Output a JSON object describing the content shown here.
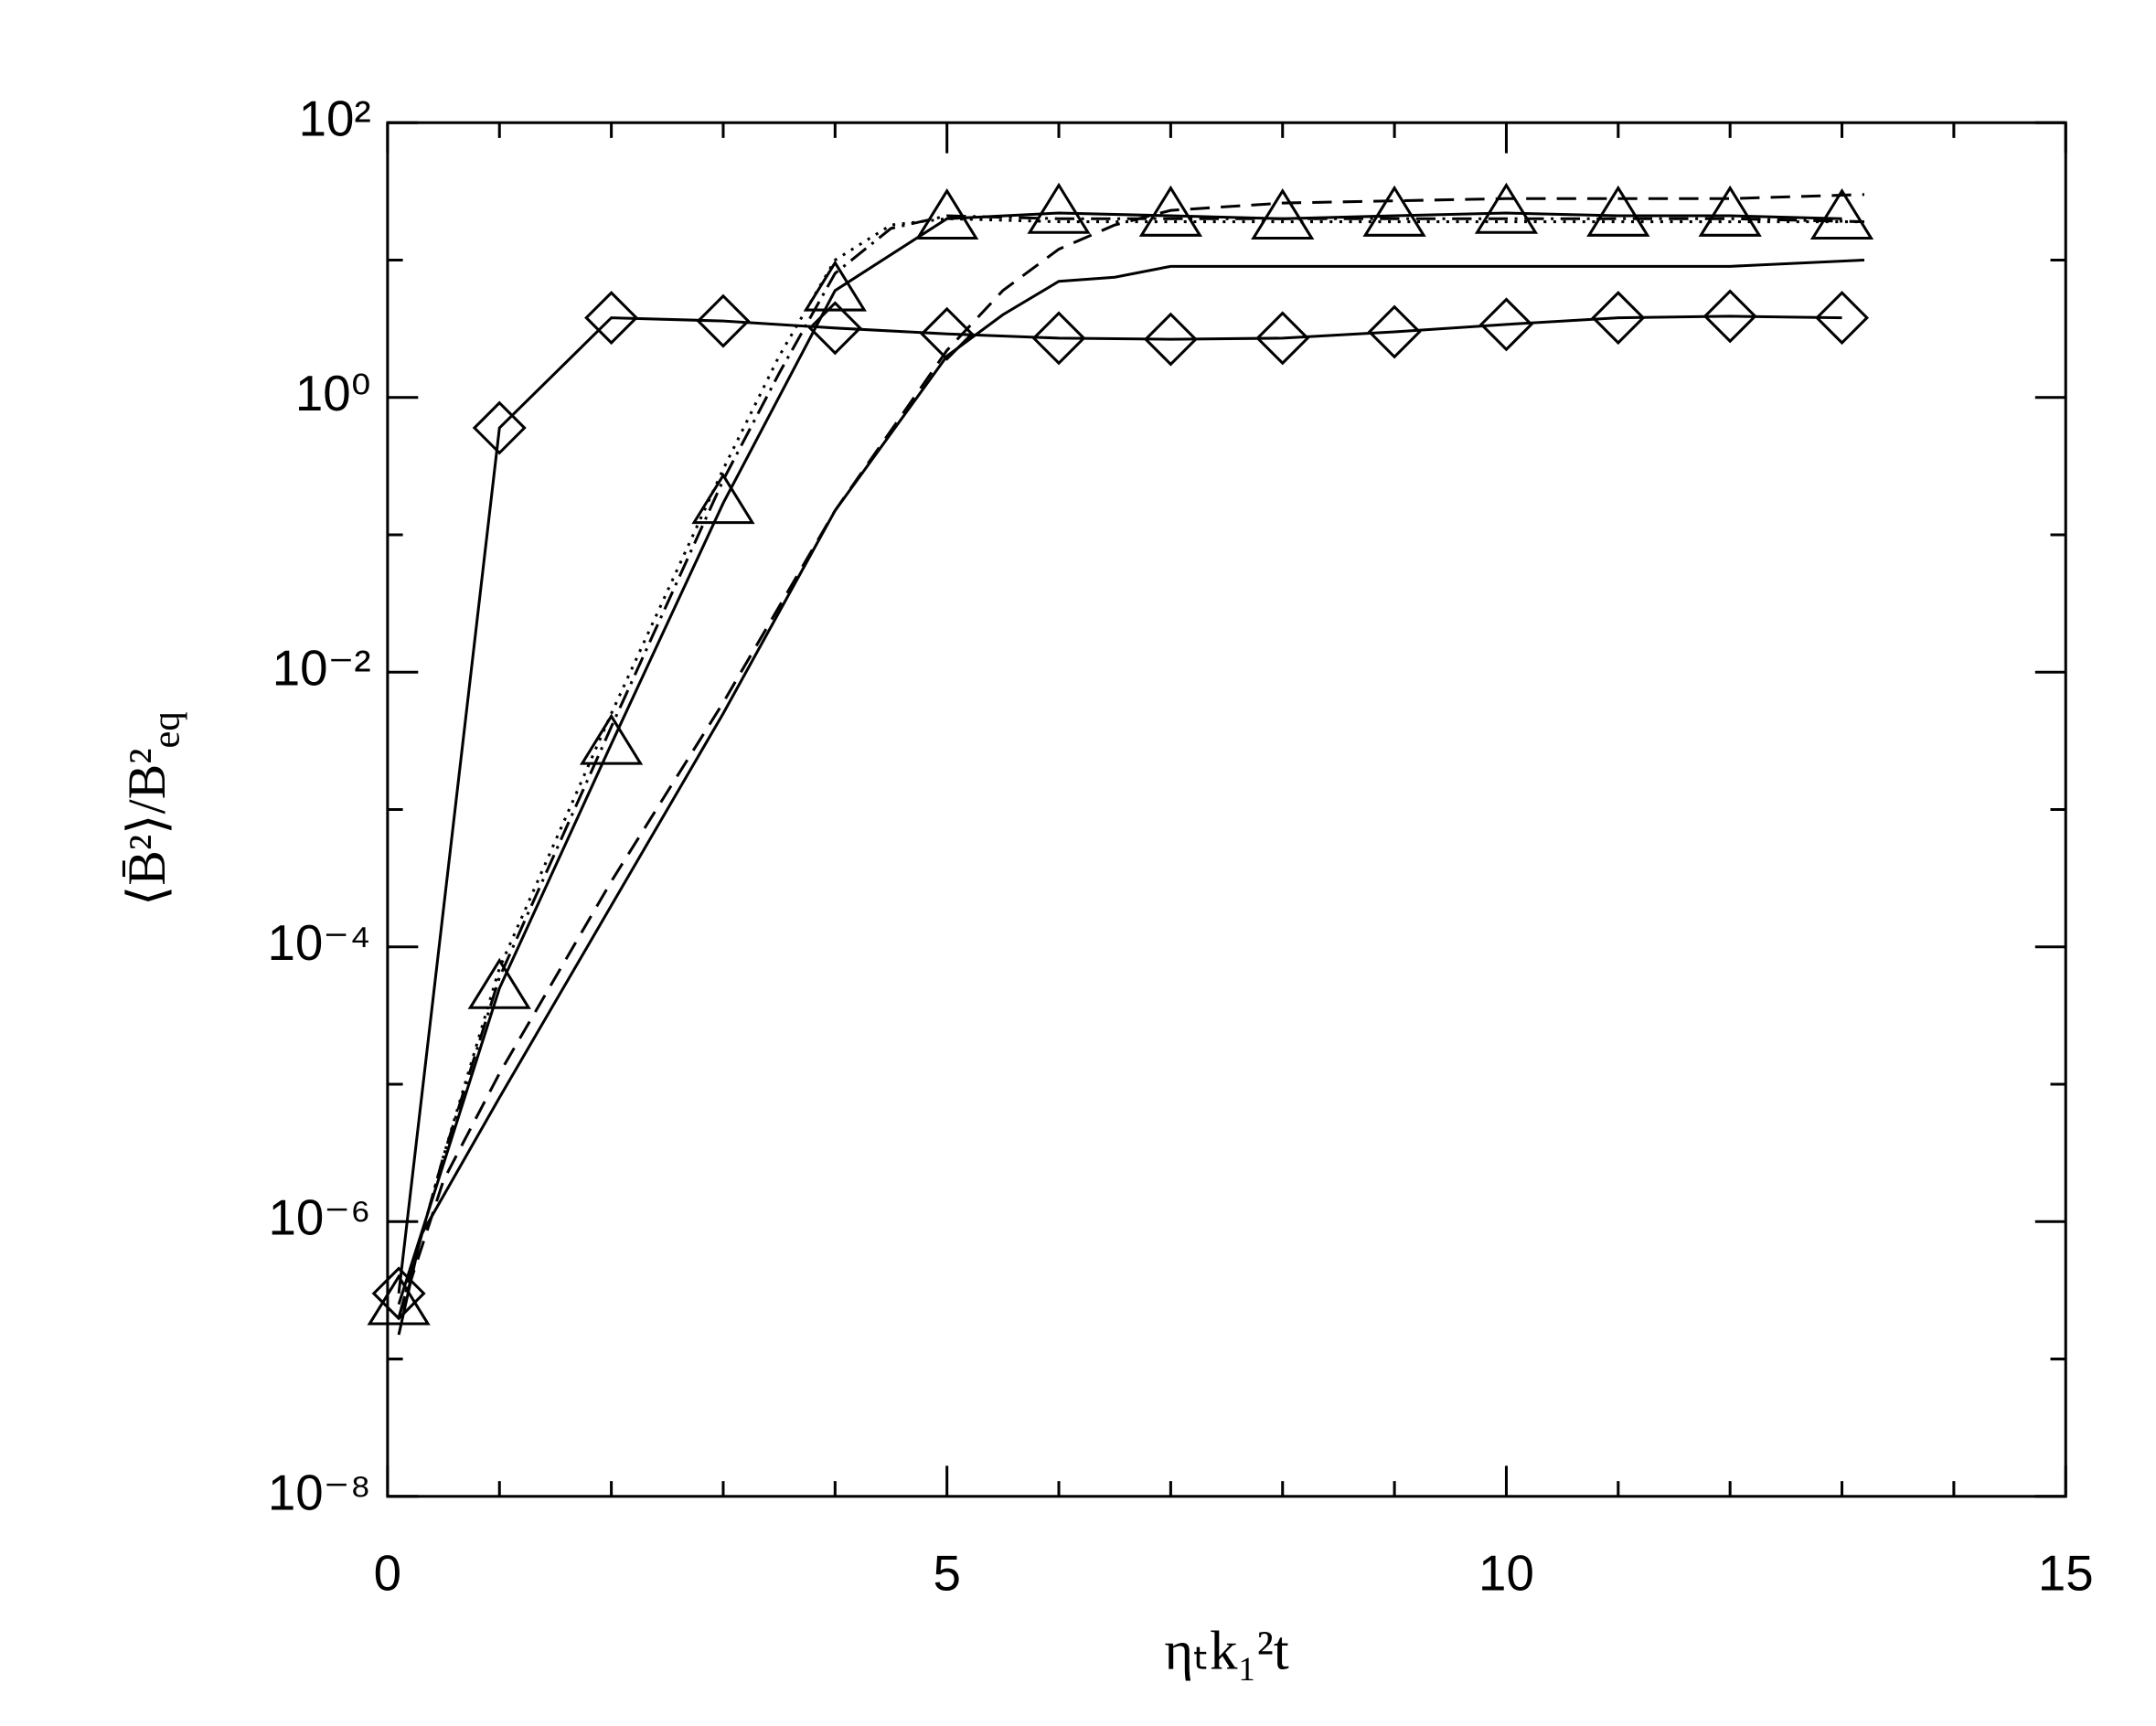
{
  "chart_data": {
    "type": "line",
    "xlabel": "ηₜk₁²t",
    "ylabel": {
      "main": "⟨B̄²⟩/B²",
      "sub": "eq"
    },
    "log_y": true,
    "xlim": [
      0,
      15
    ],
    "xticks": [
      0,
      5,
      10,
      15
    ],
    "x_minor_ticks": [
      1,
      2,
      3,
      4,
      6,
      7,
      8,
      9,
      11,
      12,
      13,
      14
    ],
    "ylim": [
      1e-08,
      100
    ],
    "yticks": [
      {
        "value": 1e-08,
        "label": "10⁻⁸"
      },
      {
        "value": 1e-06,
        "label": "10⁻⁶"
      },
      {
        "value": 0.0001,
        "label": "10⁻⁴"
      },
      {
        "value": 0.01,
        "label": "10⁻²"
      },
      {
        "value": 1,
        "label": "10⁰"
      },
      {
        "value": 100,
        "label": "10²"
      }
    ],
    "y_minor_ticks": [
      1e-07,
      1e-05,
      0.001,
      0.1,
      10
    ],
    "series": [
      {
        "color": "#000000",
        "marker": "diamond",
        "dash": "none",
        "x": [
          0.1,
          1,
          2,
          3,
          4,
          5,
          6,
          7,
          8,
          9,
          10,
          11,
          12,
          13
        ],
        "values": [
          3e-07,
          0.6,
          3.8,
          3.6,
          3.2,
          2.9,
          2.7,
          2.65,
          2.7,
          3.0,
          3.4,
          3.8,
          3.9,
          3.8
        ]
      },
      {
        "color": "#000000",
        "marker": "triangle",
        "dash": "none",
        "x": [
          0.1,
          1,
          2,
          3,
          4,
          5,
          6,
          7,
          8,
          9,
          10,
          11,
          12,
          13
        ],
        "values": [
          2.5e-07,
          5e-05,
          0.003,
          0.17,
          6,
          20,
          22,
          21,
          20,
          21,
          22,
          21,
          21,
          20
        ]
      },
      {
        "color": "#000000",
        "marker": "none",
        "dash": "14,5,2,5",
        "x": [
          0.1,
          0.5,
          1,
          2,
          3,
          3.5,
          4,
          4.5,
          5,
          6,
          8,
          10,
          12,
          13.2
        ],
        "values": [
          2e-07,
          3e-06,
          6e-05,
          0.004,
          0.25,
          1.5,
          8,
          17,
          21,
          20,
          20,
          20,
          20,
          19
        ]
      },
      {
        "color": "#000000",
        "marker": "none",
        "dash": "2,5",
        "x": [
          0.1,
          0.5,
          1,
          2,
          3,
          3.5,
          4,
          4.5,
          5,
          6,
          8,
          10,
          12,
          13.2
        ],
        "values": [
          2e-07,
          3e-06,
          7e-05,
          0.005,
          0.3,
          2,
          10,
          18,
          20,
          19,
          19,
          19,
          19,
          19
        ]
      },
      {
        "color": "#000000",
        "marker": "none",
        "dash": "14,8",
        "x": [
          0.1,
          0.5,
          1,
          2,
          3,
          4,
          5,
          5.5,
          6,
          6.5,
          7,
          8,
          10,
          12,
          13.2
        ],
        "values": [
          2e-07,
          2e-06,
          1.2e-05,
          0.0003,
          0.006,
          0.15,
          2.2,
          6,
          12,
          18,
          23,
          26,
          28,
          28,
          30
        ]
      },
      {
        "color": "#000000",
        "marker": "none",
        "dash": "none",
        "x": [
          0.1,
          0.3,
          1,
          2,
          3,
          4,
          5,
          5.5,
          6,
          6.5,
          7,
          8,
          9,
          10,
          11,
          12,
          13.2
        ],
        "values": [
          1.5e-07,
          8e-07,
          8e-06,
          0.0002,
          0.005,
          0.15,
          2,
          4,
          7,
          7.5,
          9,
          9,
          9,
          9,
          9,
          9,
          10
        ]
      }
    ]
  }
}
